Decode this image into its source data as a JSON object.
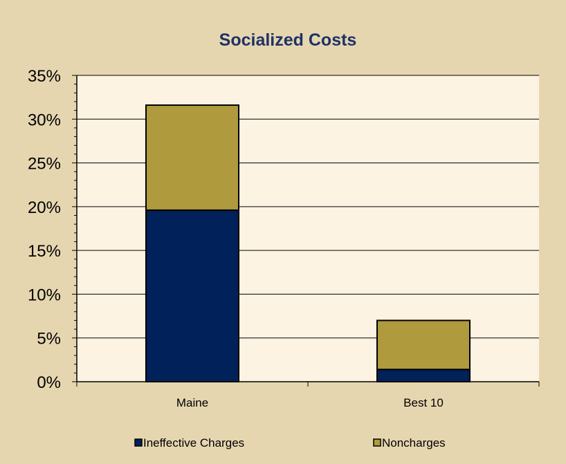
{
  "chart_data": {
    "type": "bar",
    "stacked": true,
    "title": "Socialized Costs",
    "xlabel": "",
    "ylabel": "",
    "categories": [
      "Maine",
      "Best 10"
    ],
    "series": [
      {
        "name": "Ineffective Charges",
        "values": [
          19.6,
          1.4
        ],
        "color": "#00215a"
      },
      {
        "name": "Noncharges",
        "values": [
          12.0,
          5.6
        ],
        "color": "#b09a3e"
      }
    ],
    "ylim": [
      0,
      35
    ],
    "ytick_step": 5,
    "ytick_format": "percent",
    "grid": true,
    "legend_position": "bottom"
  },
  "colors": {
    "frame_background": "#e6d6b0",
    "plot_background": "#fcf3e2",
    "title": "#1f3266",
    "gridline": "#000000"
  }
}
